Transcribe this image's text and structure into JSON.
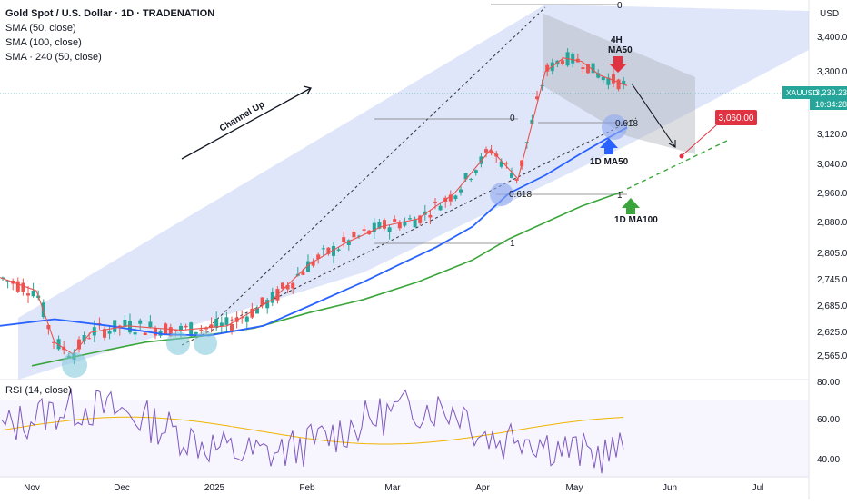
{
  "header": {
    "title": "Gold Spot / U.S. Dollar · 1D · TRADENATION",
    "indicators": [
      "SMA (50, close)",
      "SMA (100, close)",
      "SMA · 240 (50, close)"
    ]
  },
  "price_axis": {
    "currency": "USD",
    "ticks": [
      "3,400.00",
      "3,300.00",
      "3,120.00",
      "3,040.00",
      "2,960.00",
      "2,880.00",
      "2,805.00",
      "2,745.00",
      "2,685.00",
      "2,625.00",
      "2,565.00"
    ],
    "symbol_badge": "XAUUSD",
    "last_price": "3,239.23",
    "countdown": "10:34:28"
  },
  "time_axis": {
    "ticks": [
      "Nov",
      "Dec",
      "2025",
      "Feb",
      "Mar",
      "Apr",
      "May",
      "Jun",
      "Jul"
    ]
  },
  "rsi": {
    "label": "RSI (14, close)",
    "ticks": [
      "80.00",
      "60.00",
      "40.00"
    ]
  },
  "annotations": {
    "channel": "Channel Up",
    "ma50_4h_line1": "4H",
    "ma50_4h_line2": "MA50",
    "ma50_1d": "1D MA50",
    "ma100_1d": "1D MA100",
    "target": "3,060.00",
    "fib_top_0": "0",
    "fib_mid_0": "0",
    "fib_0618_a": "0.618",
    "fib_0618_b": "0.618",
    "fib_1_a": "1",
    "fib_1_b": "1"
  },
  "colors": {
    "up": "#26a69a",
    "down": "#ef5350",
    "ma50_4h": "#e8534f",
    "ma50_1d": "#2962ff",
    "ma100_1d": "#3aa53a",
    "channel_fill": "#c9d6f7",
    "target": "#e03240",
    "rsi_line": "#7e57c2",
    "rsi_ma": "#f0b400"
  },
  "chart_data": {
    "type": "candlestick",
    "title": "Gold Spot / U.S. Dollar · 1D · TRADENATION",
    "y_unit": "USD",
    "series": [
      {
        "name": "SMA (50, close)",
        "points": [
          [
            0,
            2640
          ],
          [
            60,
            2655
          ],
          [
            120,
            2640
          ],
          [
            180,
            2620
          ],
          [
            230,
            2617
          ],
          [
            290,
            2640
          ],
          [
            340,
            2685
          ],
          [
            400,
            2740
          ],
          [
            440,
            2780
          ],
          [
            480,
            2820
          ],
          [
            520,
            2870
          ],
          [
            560,
            2960
          ],
          [
            600,
            3010
          ],
          [
            640,
            3070
          ],
          [
            665,
            3105
          ],
          [
            690,
            3140
          ]
        ]
      },
      {
        "name": "SMA (100, close)",
        "points": [
          [
            35,
            2540
          ],
          [
            100,
            2572
          ],
          [
            160,
            2600
          ],
          [
            220,
            2615
          ],
          [
            280,
            2635
          ],
          [
            340,
            2670
          ],
          [
            400,
            2700
          ],
          [
            460,
            2740
          ],
          [
            520,
            2790
          ],
          [
            560,
            2840
          ],
          [
            600,
            2880
          ],
          [
            640,
            2925
          ],
          [
            685,
            2965
          ]
        ]
      },
      {
        "name": "SMA · 240 (50, close)",
        "points": [
          [
            0,
            2750
          ],
          [
            40,
            2720
          ],
          [
            60,
            2600
          ],
          [
            80,
            2570
          ],
          [
            100,
            2625
          ],
          [
            140,
            2640
          ],
          [
            200,
            2630
          ],
          [
            250,
            2640
          ],
          [
            300,
            2700
          ],
          [
            340,
            2780
          ],
          [
            380,
            2830
          ],
          [
            420,
            2870
          ],
          [
            460,
            2890
          ],
          [
            500,
            2960
          ],
          [
            540,
            3080
          ],
          [
            570,
            3000
          ],
          [
            600,
            3300
          ],
          [
            620,
            3340
          ],
          [
            640,
            3330
          ],
          [
            660,
            3290
          ],
          [
            690,
            3260
          ]
        ]
      }
    ],
    "target_price": 3060.0,
    "last_price": 3239.23
  }
}
